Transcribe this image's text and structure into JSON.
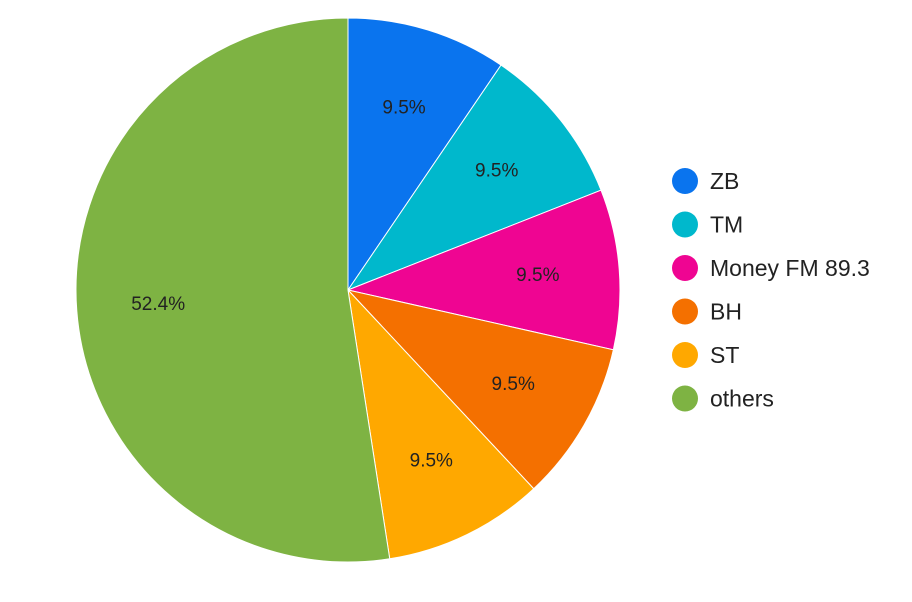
{
  "chart_data": {
    "type": "pie",
    "title": "",
    "start_angle_deg": 0,
    "direction": "clockwise",
    "legend_position": "right",
    "slices": [
      {
        "label": "ZB",
        "value": 9.5,
        "display": "9.5%",
        "color": "#0a74ee"
      },
      {
        "label": "TM",
        "value": 9.5,
        "display": "9.5%",
        "color": "#00b8cc"
      },
      {
        "label": "Money FM 89.3",
        "value": 9.5,
        "display": "9.5%",
        "color": "#ef0592"
      },
      {
        "label": "BH",
        "value": 9.5,
        "display": "9.5%",
        "color": "#f47000"
      },
      {
        "label": "ST",
        "value": 9.5,
        "display": "9.5%",
        "color": "#ffa800"
      },
      {
        "label": "others",
        "value": 52.4,
        "display": "52.4%",
        "color": "#7eb343"
      }
    ]
  }
}
